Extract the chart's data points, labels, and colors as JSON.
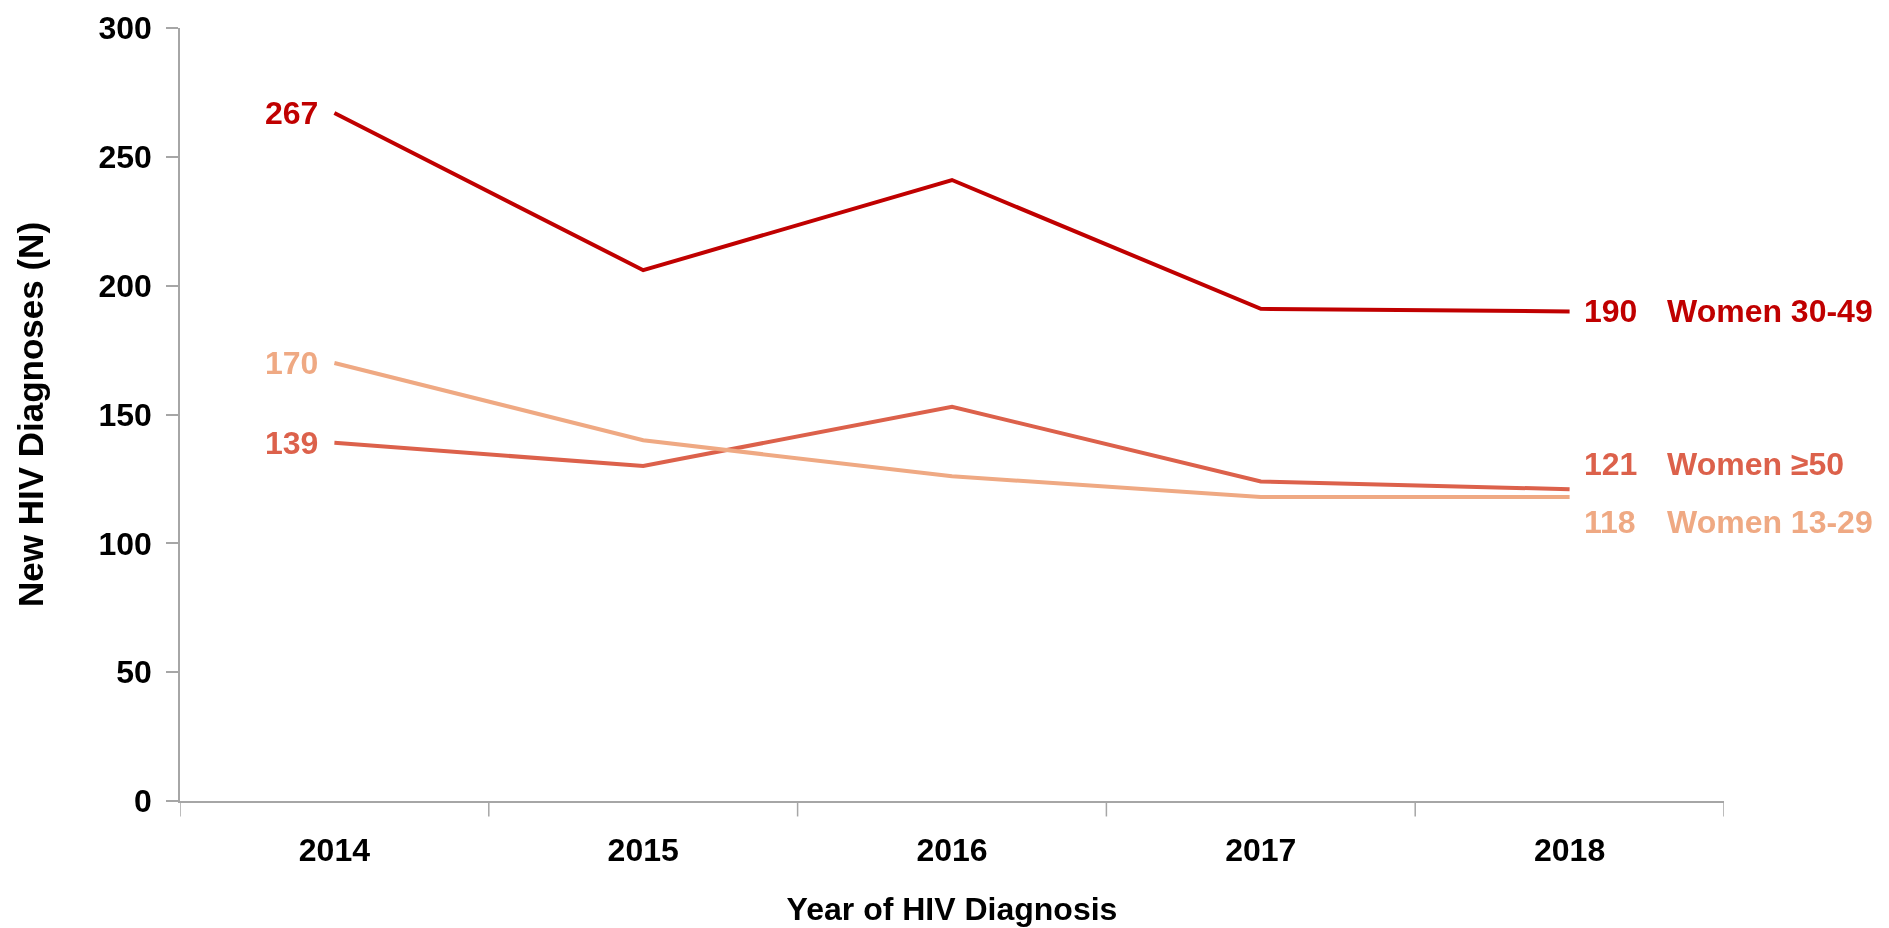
{
  "chart_data": {
    "type": "line",
    "xlabel": "Year of HIV Diagnosis",
    "ylabel": "New HIV Diagnoses (N)",
    "categories": [
      "2014",
      "2015",
      "2016",
      "2017",
      "2018"
    ],
    "ylim": [
      0,
      300
    ],
    "yticks": [
      0,
      50,
      100,
      150,
      200,
      250,
      300
    ],
    "grid": false,
    "legend": false,
    "marker": "none",
    "line_style": "solid",
    "series": [
      {
        "name": "Women 30-49",
        "color": "#c00000",
        "values": [
          267,
          206,
          241,
          191,
          190
        ],
        "value_labels": [
          "267",
          null,
          null,
          null,
          "190"
        ]
      },
      {
        "name": "Women ≥50",
        "color": "#dc614b",
        "values": [
          139,
          130,
          153,
          124,
          121
        ],
        "value_labels": [
          "139",
          null,
          null,
          null,
          "121"
        ]
      },
      {
        "name": "Women 13-29",
        "color": "#efa983",
        "values": [
          170,
          140,
          126,
          118,
          118
        ],
        "value_labels": [
          "170",
          null,
          null,
          null,
          "118"
        ]
      }
    ]
  }
}
